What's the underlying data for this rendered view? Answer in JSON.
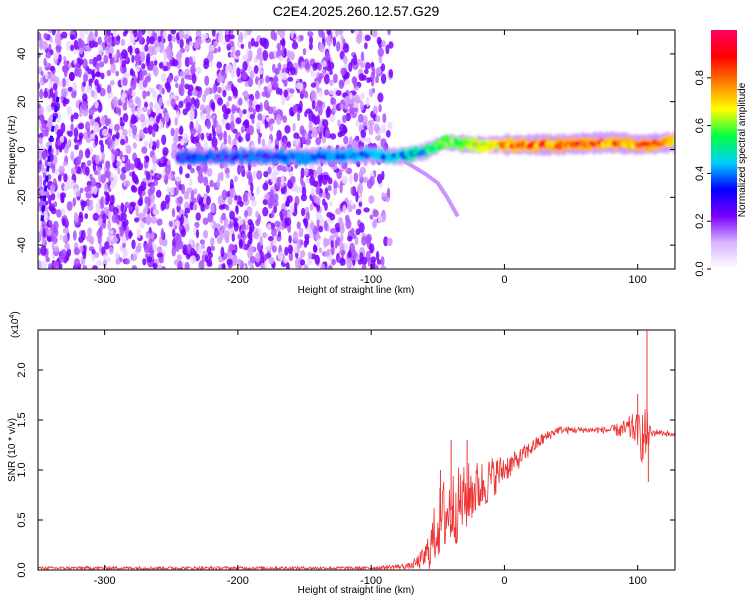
{
  "figure": {
    "title": "C2E4.2025.260.12.57.G29"
  },
  "chart_data": [
    {
      "type": "heatmap",
      "name": "spectrogram",
      "xlabel": "Height of straight line (km)",
      "ylabel": "Frequency (Hz)",
      "xlim": [
        -350,
        128
      ],
      "ylim": [
        -50,
        50
      ],
      "xticks": [
        -300,
        -200,
        -100,
        0,
        100
      ],
      "yticks": [
        -40,
        -20,
        0,
        20,
        40
      ],
      "colorbar": {
        "label": "Normalized spectral amplitude",
        "range": [
          0.0,
          1.0
        ],
        "ticks": [
          0.0,
          0.2,
          0.4,
          0.6,
          0.8
        ],
        "tick_labels": [
          "0.0",
          "0.2",
          "0.4",
          "0.6",
          "0.8"
        ],
        "colormap": [
          "#ffffff",
          "#d9b3ff",
          "#7a00ff",
          "#0000ff",
          "#00d0ff",
          "#00ff40",
          "#ffff00",
          "#ff8000",
          "#ff0000",
          "#ff0066"
        ]
      },
      "features": {
        "noise_region_x": [
          -350,
          -85
        ],
        "noise_fade_x": [
          -120,
          -85
        ],
        "signal_band": [
          {
            "x": -245,
            "f": -3,
            "amp": 0.3
          },
          {
            "x": -200,
            "f": -3,
            "amp": 0.33
          },
          {
            "x": -150,
            "f": -3,
            "amp": 0.35
          },
          {
            "x": -100,
            "f": -2,
            "amp": 0.4
          },
          {
            "x": -80,
            "f": -3,
            "amp": 0.45
          },
          {
            "x": -60,
            "f": -1,
            "amp": 0.55
          },
          {
            "x": -45,
            "f": 3,
            "amp": 0.65
          },
          {
            "x": -25,
            "f": 2,
            "amp": 0.75
          },
          {
            "x": 0,
            "f": 2,
            "amp": 0.9
          },
          {
            "x": 40,
            "f": 2,
            "amp": 0.95
          },
          {
            "x": 80,
            "f": 3,
            "amp": 0.92
          },
          {
            "x": 100,
            "f": 2,
            "amp": 0.95
          },
          {
            "x": 128,
            "f": 3,
            "amp": 0.9
          }
        ],
        "side_branch": [
          {
            "x": -75,
            "f": -5
          },
          {
            "x": -60,
            "f": -10
          },
          {
            "x": -50,
            "f": -14
          },
          {
            "x": -43,
            "f": -20
          },
          {
            "x": -35,
            "f": -28
          }
        ],
        "left_streak": [
          {
            "x": -347,
            "f": -30
          },
          {
            "x": -340,
            "f": 5
          },
          {
            "x": -335,
            "f": 22
          }
        ]
      }
    },
    {
      "type": "line",
      "name": "snr",
      "xlabel": "Height of straight line (km)",
      "ylabel": "SNR (10 * v/v)",
      "yscale_label": "(x10",
      "yscale_exp": "4",
      "yscale_close": ")",
      "xlim": [
        -350,
        128
      ],
      "ylim": [
        0,
        2.4
      ],
      "xticks": [
        -300,
        -200,
        -100,
        0,
        100
      ],
      "yticks": [
        0.0,
        0.5,
        1.0,
        1.5,
        2.0
      ],
      "ytick_labels": [
        "0.0",
        "0.5",
        "1.0",
        "1.5",
        "2.0"
      ],
      "color": "#ee3333",
      "series": [
        {
          "x": [
            -350,
            -200,
            -100,
            -70,
            -60,
            -55,
            -50,
            -45,
            -40,
            -35,
            -30,
            -25,
            -20,
            -15,
            -10,
            -5,
            0,
            5,
            10,
            20,
            30,
            40,
            60,
            80,
            90,
            95,
            100,
            105,
            108,
            110,
            115,
            120,
            128
          ],
          "y": [
            0.02,
            0.02,
            0.02,
            0.04,
            0.12,
            0.25,
            0.45,
            0.55,
            0.6,
            0.65,
            0.7,
            0.78,
            0.82,
            0.86,
            0.92,
            0.96,
            1.02,
            1.05,
            1.1,
            1.22,
            1.32,
            1.4,
            1.4,
            1.4,
            1.4,
            1.42,
            1.4,
            1.3,
            1.38,
            1.36,
            1.38,
            1.37,
            1.34
          ],
          "noise": [
            0.015,
            0.015,
            0.015,
            0.03,
            0.12,
            0.25,
            0.35,
            0.4,
            0.4,
            0.38,
            0.35,
            0.32,
            0.28,
            0.25,
            0.22,
            0.18,
            0.15,
            0.12,
            0.1,
            0.08,
            0.06,
            0.04,
            0.03,
            0.04,
            0.1,
            0.14,
            0.16,
            0.35,
            0.2,
            0.05,
            0.03,
            0.03,
            0.03
          ]
        }
      ],
      "spikes": [
        {
          "x": 107,
          "y": 2.42
        },
        {
          "x": 100,
          "y": 1.76
        },
        {
          "x": 108,
          "y": 0.88
        },
        {
          "x": -48,
          "y": 1.0
        },
        {
          "x": -40,
          "y": 1.3
        },
        {
          "x": -28,
          "y": 1.3
        }
      ]
    }
  ]
}
